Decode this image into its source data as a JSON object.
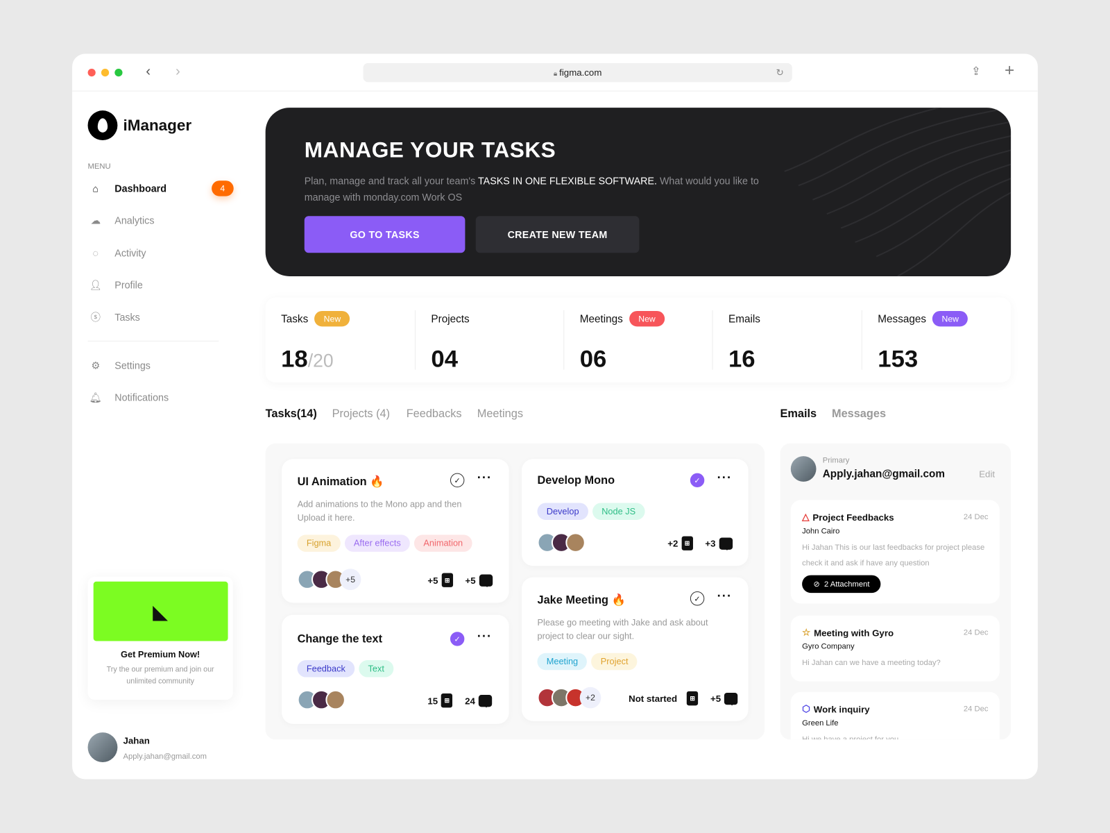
{
  "browser": {
    "url": "figma.com",
    "icons": [
      "back-icon",
      "forward-icon",
      "lock-icon",
      "reload-icon",
      "share-icon",
      "plus-icon"
    ]
  },
  "brand": {
    "name": "iManager"
  },
  "sidebar": {
    "menu_label": "MENU",
    "items": [
      {
        "label": "Dashboard",
        "icon": "home-icon",
        "badge": "4"
      },
      {
        "label": "Analytics",
        "icon": "analytics-icon"
      },
      {
        "label": "Activity",
        "icon": "activity-icon"
      },
      {
        "label": "Profile",
        "icon": "profile-icon"
      },
      {
        "label": "Tasks",
        "icon": "tasks-icon"
      },
      {
        "label": "Settings",
        "icon": "settings-icon"
      },
      {
        "label": "Notifications",
        "icon": "bell-icon"
      }
    ],
    "premium": {
      "title": "Get Premium Now!",
      "text": "Try the our premium and join our unlimited community"
    },
    "user": {
      "name": "Jahan",
      "email": "Apply.jahan@gmail.com"
    }
  },
  "banner": {
    "title": "MANAGE YOUR TASKS",
    "text_a": "Plan, manage and track all your team's ",
    "text_b": "TASKS IN ONE FLEXIBLE SOFTWARE.",
    "text_c": " What would you like to manage with monday.com Work OS",
    "primary": "GO TO TASKS",
    "secondary": "CREATE  NEW TEAM"
  },
  "stats": [
    {
      "label": "Tasks",
      "badge": "New",
      "value": "18",
      "sub": "/20"
    },
    {
      "label": "Projects",
      "value": "04"
    },
    {
      "label": "Meetings",
      "badge": "New",
      "value": "06"
    },
    {
      "label": "Emails",
      "value": "16"
    },
    {
      "label": "Messages",
      "badge": "New",
      "value": "153"
    }
  ],
  "tabs": [
    "Tasks(14)",
    "Projects (4)",
    "Feedbacks",
    "Meetings"
  ],
  "mail_tabs": [
    "Emails",
    "Messages"
  ],
  "tasks": [
    {
      "title": "UI Animation",
      "desc": "Add animations to the Mono app and then Upload it here.",
      "tags": [
        "Figma",
        "After effects",
        "Animation"
      ],
      "more": "+5",
      "files": "+5",
      "comments": "+5",
      "done": false
    },
    {
      "title": "Change the text",
      "tags": [
        "Feedback",
        "Text"
      ],
      "files": "15",
      "comments": "24",
      "done": true
    },
    {
      "title": "Develop Mono",
      "tags": [
        "Develop",
        "Node JS"
      ],
      "files": "+2",
      "comments": "+3",
      "done": true
    },
    {
      "title": "Jake Meeting",
      "desc": "Please go meeting with Jake and ask about project to clear our sight.",
      "tags": [
        "Meeting",
        "Project"
      ],
      "more": "+2",
      "status": "Not started",
      "comments": "+5",
      "done": false
    }
  ],
  "mail": {
    "label": "Primary",
    "address": "Apply.jahan@gmail.com",
    "edit": "Edit",
    "items": [
      {
        "title": "Project Feedbacks",
        "from": "John Cairo",
        "date": "24 Dec",
        "body": "Hi Jahan This is our last feedbacks for project please check it and ask if have any question",
        "attachment": "2 Attachment",
        "icon": "triangle-icon"
      },
      {
        "title": "Meeting with Gyro",
        "from": "Gyro Company",
        "date": "24 Dec",
        "body": "Hi Jahan can we have a meeting today?",
        "icon": "star-icon"
      },
      {
        "title": "Work inquiry",
        "from": "Green Life",
        "date": "24 Dec",
        "body": "Hi we have a project for you",
        "icon": "hexagon-icon"
      }
    ]
  },
  "colors": {
    "accent": "#8b5cf6",
    "orange": "#ff6b00",
    "premium": "#7cfc22",
    "banner": "#1f1f21"
  }
}
